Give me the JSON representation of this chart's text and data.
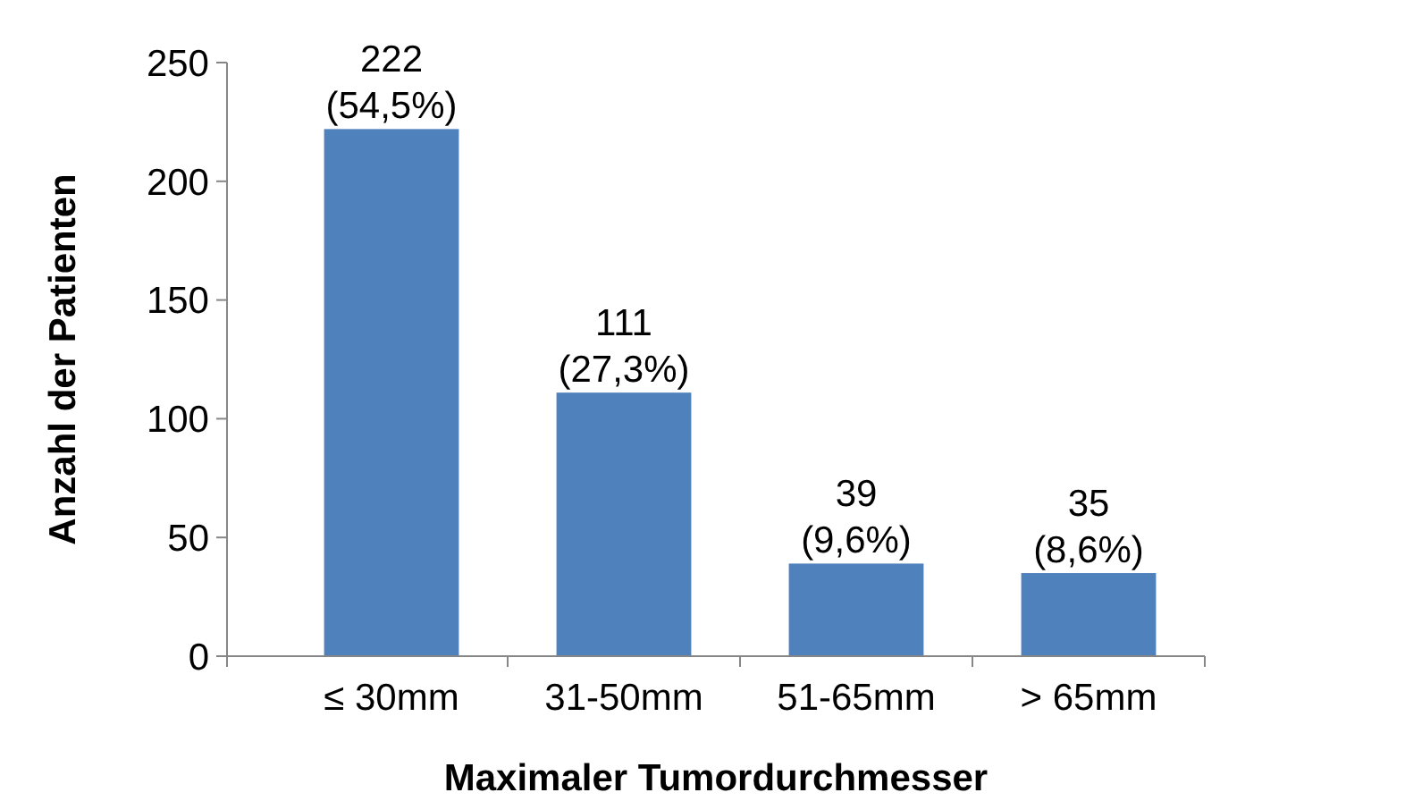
{
  "chart_data": {
    "type": "bar",
    "xlabel": "Maximaler Tumordurchmesser",
    "ylabel": "Anzahl der Patienten",
    "categories": [
      "≤ 30mm",
      "31-50mm",
      "51-65mm",
      "> 65mm"
    ],
    "values": [
      222,
      111,
      39,
      35
    ],
    "value_labels": [
      "222\n(54,5%)",
      "111\n(27,3%)",
      "39\n(9,6%)",
      "35\n(8,6%)"
    ],
    "color": "#4f81bd",
    "ylim": [
      0,
      250
    ],
    "yticks": [
      0,
      50,
      100,
      150,
      200,
      250
    ],
    "grid": false
  }
}
